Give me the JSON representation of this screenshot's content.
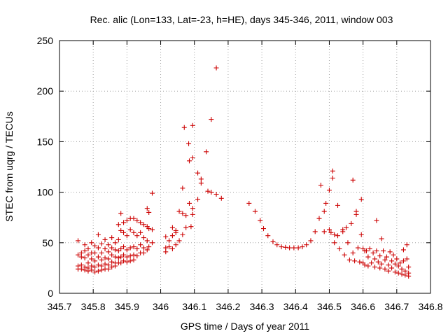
{
  "chart_data": {
    "type": "scatter",
    "title": "Rec. alic (Lon=133, Lat=-23, h=HE), days 345-346, 2011, window 003",
    "xlabel": "GPS time / Days of year 2011",
    "ylabel": "STEC from uqrg / TECUs",
    "xlim": [
      345.7,
      346.8
    ],
    "ylim": [
      0,
      250
    ],
    "xticks": [
      345.7,
      345.8,
      345.9,
      346.0,
      346.1,
      346.2,
      346.3,
      346.4,
      346.5,
      346.6,
      346.7,
      346.8
    ],
    "xtick_labels": [
      "345.7",
      "345.8",
      "345.9",
      "346",
      "346.1",
      "346.2",
      "346.3",
      "346.4",
      "346.5",
      "346.6",
      "346.7",
      "346.8"
    ],
    "yticks": [
      0,
      50,
      100,
      150,
      200,
      250
    ],
    "ytick_labels": [
      "0",
      "50",
      "100",
      "150",
      "200",
      "250"
    ],
    "grid": true,
    "marker": "plus",
    "color": "#cc0000",
    "points": [
      [
        345.755,
        52
      ],
      [
        345.755,
        38
      ],
      [
        345.755,
        27
      ],
      [
        345.755,
        24
      ],
      [
        345.765,
        40
      ],
      [
        345.765,
        36
      ],
      [
        345.765,
        28
      ],
      [
        345.765,
        24
      ],
      [
        345.775,
        48
      ],
      [
        345.775,
        42
      ],
      [
        345.775,
        35
      ],
      [
        345.775,
        26
      ],
      [
        345.775,
        23
      ],
      [
        345.785,
        44
      ],
      [
        345.785,
        38
      ],
      [
        345.785,
        30
      ],
      [
        345.785,
        25
      ],
      [
        345.785,
        22
      ],
      [
        345.795,
        50
      ],
      [
        345.795,
        40
      ],
      [
        345.795,
        34
      ],
      [
        345.795,
        27
      ],
      [
        345.795,
        23
      ],
      [
        345.805,
        47
      ],
      [
        345.805,
        40
      ],
      [
        345.805,
        32
      ],
      [
        345.805,
        26
      ],
      [
        345.805,
        21
      ],
      [
        345.815,
        58
      ],
      [
        345.815,
        45
      ],
      [
        345.815,
        36
      ],
      [
        345.815,
        28
      ],
      [
        345.815,
        22
      ],
      [
        345.825,
        49
      ],
      [
        345.825,
        40
      ],
      [
        345.825,
        33
      ],
      [
        345.825,
        27
      ],
      [
        345.825,
        23
      ],
      [
        345.835,
        53
      ],
      [
        345.835,
        44
      ],
      [
        345.835,
        35
      ],
      [
        345.835,
        29
      ],
      [
        345.835,
        24
      ],
      [
        345.845,
        48
      ],
      [
        345.845,
        41
      ],
      [
        345.845,
        34
      ],
      [
        345.845,
        28
      ],
      [
        345.845,
        24
      ],
      [
        345.855,
        55
      ],
      [
        345.855,
        45
      ],
      [
        345.855,
        38
      ],
      [
        345.855,
        31
      ],
      [
        345.855,
        26
      ],
      [
        345.865,
        50
      ],
      [
        345.865,
        43
      ],
      [
        345.865,
        36
      ],
      [
        345.865,
        30
      ],
      [
        345.865,
        27
      ],
      [
        345.875,
        68
      ],
      [
        345.875,
        53
      ],
      [
        345.875,
        42
      ],
      [
        345.875,
        35
      ],
      [
        345.875,
        30
      ],
      [
        345.882,
        79
      ],
      [
        345.882,
        62
      ],
      [
        345.882,
        44
      ],
      [
        345.882,
        36
      ],
      [
        345.882,
        30
      ],
      [
        345.89,
        70
      ],
      [
        345.89,
        60
      ],
      [
        345.89,
        46
      ],
      [
        345.89,
        38
      ],
      [
        345.89,
        32
      ],
      [
        345.9,
        72
      ],
      [
        345.9,
        57
      ],
      [
        345.9,
        43
      ],
      [
        345.9,
        36
      ],
      [
        345.9,
        31
      ],
      [
        345.91,
        74
      ],
      [
        345.91,
        63
      ],
      [
        345.91,
        45
      ],
      [
        345.91,
        37
      ],
      [
        345.91,
        32
      ],
      [
        345.92,
        74
      ],
      [
        345.92,
        60
      ],
      [
        345.92,
        46
      ],
      [
        345.92,
        38
      ],
      [
        345.92,
        33
      ],
      [
        345.93,
        72
      ],
      [
        345.93,
        57
      ],
      [
        345.93,
        44
      ],
      [
        345.93,
        37
      ],
      [
        345.94,
        70
      ],
      [
        345.94,
        60
      ],
      [
        345.94,
        48
      ],
      [
        345.94,
        40
      ],
      [
        345.95,
        68
      ],
      [
        345.95,
        55
      ],
      [
        345.95,
        45
      ],
      [
        345.95,
        40
      ],
      [
        345.96,
        84
      ],
      [
        345.96,
        66
      ],
      [
        345.96,
        52
      ],
      [
        345.96,
        43
      ],
      [
        345.965,
        80
      ],
      [
        345.965,
        64
      ],
      [
        345.965,
        46
      ],
      [
        345.975,
        99
      ],
      [
        345.975,
        63
      ],
      [
        345.975,
        50
      ],
      [
        346.015,
        56
      ],
      [
        346.015,
        45
      ],
      [
        346.015,
        41
      ],
      [
        346.025,
        52
      ],
      [
        346.025,
        46
      ],
      [
        346.035,
        65
      ],
      [
        346.035,
        57
      ],
      [
        346.035,
        44
      ],
      [
        346.045,
        62
      ],
      [
        346.045,
        60
      ],
      [
        346.045,
        48
      ],
      [
        346.055,
        81
      ],
      [
        346.055,
        52
      ],
      [
        346.065,
        104
      ],
      [
        346.065,
        79
      ],
      [
        346.065,
        58
      ],
      [
        346.07,
        164
      ],
      [
        346.075,
        77
      ],
      [
        346.075,
        65
      ],
      [
        346.083,
        148
      ],
      [
        346.085,
        131
      ],
      [
        346.085,
        89
      ],
      [
        346.09,
        66
      ],
      [
        346.095,
        166
      ],
      [
        346.095,
        134
      ],
      [
        346.095,
        84
      ],
      [
        346.095,
        78
      ],
      [
        346.11,
        119
      ],
      [
        346.11,
        93
      ],
      [
        346.12,
        113
      ],
      [
        346.12,
        109
      ],
      [
        346.135,
        140
      ],
      [
        346.14,
        101
      ],
      [
        346.15,
        172
      ],
      [
        346.15,
        100
      ],
      [
        346.165,
        223
      ],
      [
        346.165,
        98
      ],
      [
        346.18,
        94
      ],
      [
        346.262,
        89
      ],
      [
        346.28,
        81
      ],
      [
        346.295,
        72
      ],
      [
        346.305,
        64
      ],
      [
        346.318,
        57
      ],
      [
        346.333,
        51
      ],
      [
        346.345,
        48
      ],
      [
        346.358,
        46
      ],
      [
        346.37,
        45.5
      ],
      [
        346.382,
        45
      ],
      [
        346.395,
        45
      ],
      [
        346.408,
        45
      ],
      [
        346.42,
        46
      ],
      [
        346.432,
        48
      ],
      [
        346.445,
        52
      ],
      [
        346.458,
        61
      ],
      [
        346.47,
        74
      ],
      [
        346.475,
        107
      ],
      [
        346.485,
        81
      ],
      [
        346.485,
        61
      ],
      [
        346.49,
        89
      ],
      [
        346.5,
        102
      ],
      [
        346.5,
        63
      ],
      [
        346.505,
        60
      ],
      [
        346.51,
        121
      ],
      [
        346.51,
        114
      ],
      [
        346.515,
        58
      ],
      [
        346.515,
        50
      ],
      [
        346.525,
        87
      ],
      [
        346.525,
        57
      ],
      [
        346.53,
        44
      ],
      [
        346.54,
        63
      ],
      [
        346.54,
        61
      ],
      [
        346.545,
        38
      ],
      [
        346.55,
        65
      ],
      [
        346.555,
        50
      ],
      [
        346.56,
        33
      ],
      [
        346.565,
        69
      ],
      [
        346.57,
        112
      ],
      [
        346.57,
        40
      ],
      [
        346.575,
        32
      ],
      [
        346.58,
        81
      ],
      [
        346.58,
        78
      ],
      [
        346.585,
        45
      ],
      [
        346.59,
        31
      ],
      [
        346.595,
        93
      ],
      [
        346.595,
        58
      ],
      [
        346.6,
        44
      ],
      [
        346.6,
        30
      ],
      [
        346.605,
        42
      ],
      [
        346.605,
        28
      ],
      [
        346.61,
        42
      ],
      [
        346.615,
        36
      ],
      [
        346.615,
        27
      ],
      [
        346.62,
        44
      ],
      [
        346.625,
        30
      ],
      [
        346.63,
        40
      ],
      [
        346.635,
        34
      ],
      [
        346.635,
        26
      ],
      [
        346.64,
        72
      ],
      [
        346.64,
        42
      ],
      [
        346.645,
        31
      ],
      [
        346.65,
        37
      ],
      [
        346.65,
        25
      ],
      [
        346.655,
        54
      ],
      [
        346.655,
        29
      ],
      [
        346.66,
        42
      ],
      [
        346.665,
        33
      ],
      [
        346.665,
        24
      ],
      [
        346.67,
        36
      ],
      [
        346.675,
        28
      ],
      [
        346.675,
        22
      ],
      [
        346.68,
        41
      ],
      [
        346.685,
        32
      ],
      [
        346.685,
        25
      ],
      [
        346.69,
        38
      ],
      [
        346.695,
        29
      ],
      [
        346.695,
        21
      ],
      [
        346.7,
        34
      ],
      [
        346.705,
        27
      ],
      [
        346.705,
        20
      ],
      [
        346.71,
        30
      ],
      [
        346.715,
        24
      ],
      [
        346.715,
        19
      ],
      [
        346.72,
        43
      ],
      [
        346.72,
        32
      ],
      [
        346.725,
        22
      ],
      [
        346.725,
        18
      ],
      [
        346.73,
        48
      ],
      [
        346.73,
        34
      ],
      [
        346.735,
        26
      ],
      [
        346.735,
        20
      ],
      [
        346.735,
        17
      ]
    ]
  }
}
